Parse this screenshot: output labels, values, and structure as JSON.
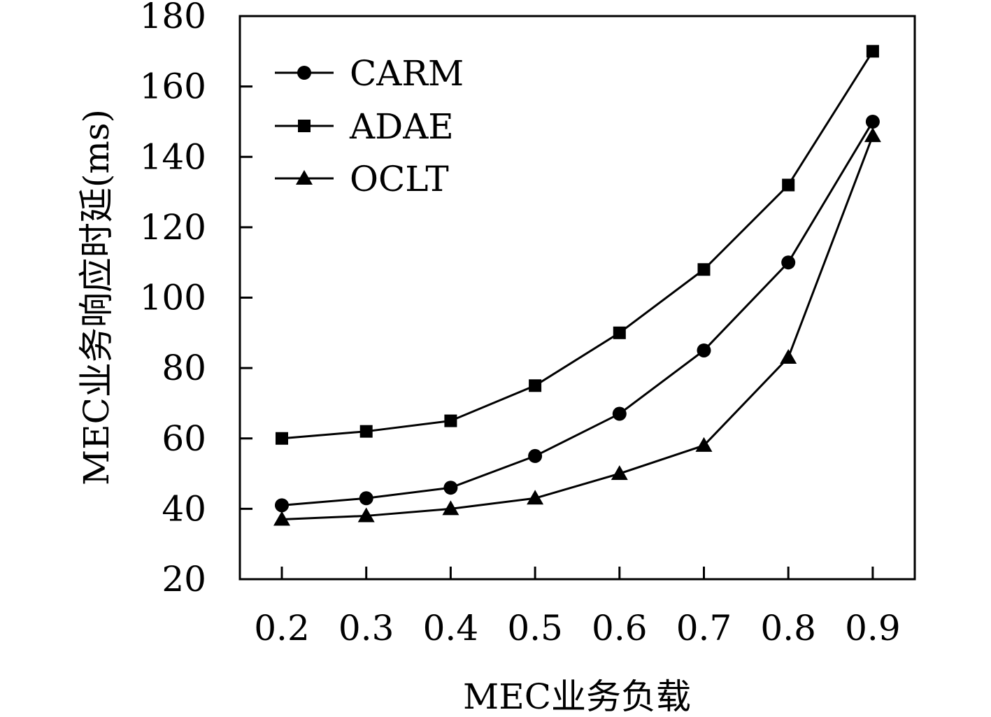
{
  "chart_data": {
    "type": "line",
    "xlabel": "MEC业务负载",
    "ylabel": "MEC业务响应时延(ms)",
    "x": [
      0.2,
      0.3,
      0.4,
      0.5,
      0.6,
      0.7,
      0.8,
      0.9
    ],
    "x_tick_labels": [
      "0.2",
      "0.3",
      "0.4",
      "0.5",
      "0.6",
      "0.7",
      "0.8",
      "0.9"
    ],
    "ylim": [
      20,
      180
    ],
    "y_ticks": [
      20,
      40,
      60,
      80,
      100,
      120,
      140,
      160,
      180
    ],
    "y_tick_labels": [
      "20",
      "40",
      "60",
      "80",
      "100",
      "120",
      "140",
      "160",
      "180"
    ],
    "grid": false,
    "legend_position": "top-left",
    "series": [
      {
        "name": "CARM",
        "marker": "circle",
        "values": [
          41,
          43,
          46,
          55,
          67,
          85,
          110,
          150
        ]
      },
      {
        "name": "ADAE",
        "marker": "square",
        "values": [
          60,
          62,
          65,
          75,
          90,
          108,
          132,
          170
        ]
      },
      {
        "name": "OCLT",
        "marker": "triangle",
        "values": [
          37,
          38,
          40,
          43,
          50,
          58,
          83,
          146
        ]
      }
    ],
    "line_color": "#000000"
  }
}
